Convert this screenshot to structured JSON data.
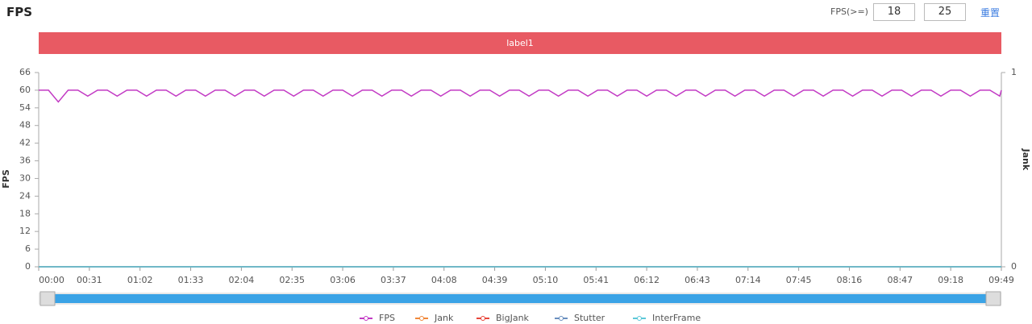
{
  "header": {
    "title": "FPS",
    "threshold_label": "FPS(>=)",
    "threshold_low": 18,
    "threshold_high": 25,
    "reset": "重置"
  },
  "chart_data": {
    "type": "line",
    "band_label": "label1",
    "y_label": "FPS",
    "y2_label": "Jank",
    "xlim": [
      0,
      589
    ],
    "xticks": [
      {
        "value": 0,
        "label": "00:00"
      },
      {
        "value": 31,
        "label": "00:31"
      },
      {
        "value": 62,
        "label": "01:02"
      },
      {
        "value": 93,
        "label": "01:33"
      },
      {
        "value": 124,
        "label": "02:04"
      },
      {
        "value": 155,
        "label": "02:35"
      },
      {
        "value": 186,
        "label": "03:06"
      },
      {
        "value": 217,
        "label": "03:37"
      },
      {
        "value": 248,
        "label": "04:08"
      },
      {
        "value": 279,
        "label": "04:39"
      },
      {
        "value": 310,
        "label": "05:10"
      },
      {
        "value": 341,
        "label": "05:41"
      },
      {
        "value": 372,
        "label": "06:12"
      },
      {
        "value": 403,
        "label": "06:43"
      },
      {
        "value": 434,
        "label": "07:14"
      },
      {
        "value": 465,
        "label": "07:45"
      },
      {
        "value": 496,
        "label": "08:16"
      },
      {
        "value": 527,
        "label": "08:47"
      },
      {
        "value": 558,
        "label": "09:18"
      },
      {
        "value": 589,
        "label": "09:49"
      }
    ],
    "ylim": [
      0,
      66
    ],
    "yticks": [
      0,
      6,
      12,
      18,
      24,
      30,
      36,
      42,
      48,
      54,
      60,
      66
    ],
    "y2lim": [
      0,
      1
    ],
    "y2ticks": [
      0,
      1
    ],
    "series": [
      {
        "name": "FPS",
        "color": "#c23ac4",
        "x": [
          0,
          6,
          12,
          18,
          24,
          30,
          36,
          42,
          48,
          54,
          60,
          66,
          72,
          78,
          84,
          90,
          96,
          102,
          108,
          114,
          120,
          126,
          132,
          138,
          144,
          150,
          156,
          162,
          168,
          174,
          180,
          186,
          192,
          198,
          204,
          210,
          216,
          222,
          228,
          234,
          240,
          246,
          252,
          258,
          264,
          270,
          276,
          282,
          288,
          294,
          300,
          306,
          312,
          318,
          324,
          330,
          336,
          342,
          348,
          354,
          360,
          366,
          372,
          378,
          384,
          390,
          396,
          402,
          408,
          414,
          420,
          426,
          432,
          438,
          444,
          450,
          456,
          462,
          468,
          474,
          480,
          486,
          492,
          498,
          504,
          510,
          516,
          522,
          528,
          534,
          540,
          546,
          552,
          558,
          564,
          570,
          576,
          582,
          588,
          589
        ],
        "values": [
          60,
          60,
          56,
          60,
          60,
          58,
          60,
          60,
          58,
          60,
          60,
          58,
          60,
          60,
          58,
          60,
          60,
          58,
          60,
          60,
          58,
          60,
          60,
          58,
          60,
          60,
          58,
          60,
          60,
          58,
          60,
          60,
          58,
          60,
          60,
          58,
          60,
          60,
          58,
          60,
          60,
          58,
          60,
          60,
          58,
          60,
          60,
          58,
          60,
          60,
          58,
          60,
          60,
          58,
          60,
          60,
          58,
          60,
          60,
          58,
          60,
          60,
          58,
          60,
          60,
          58,
          60,
          60,
          58,
          60,
          60,
          58,
          60,
          60,
          58,
          60,
          60,
          58,
          60,
          60,
          58,
          60,
          60,
          58,
          60,
          60,
          58,
          60,
          60,
          58,
          60,
          60,
          58,
          60,
          60,
          58,
          60,
          60,
          58,
          60
        ]
      },
      {
        "name": "Jank",
        "color": "#f0883a",
        "axis": "y2",
        "x": [
          0,
          589
        ],
        "values": [
          0,
          0
        ]
      },
      {
        "name": "BigJank",
        "color": "#e8463a",
        "axis": "y2",
        "x": [
          0,
          589
        ],
        "values": [
          0,
          0
        ]
      },
      {
        "name": "Stutter",
        "color": "#6a8fbf",
        "axis": "y2",
        "x": [
          0,
          589
        ],
        "values": [
          0,
          0
        ]
      },
      {
        "name": "InterFrame",
        "color": "#5cc8d8",
        "axis": "y2",
        "x": [
          0,
          589
        ],
        "values": [
          0,
          0
        ]
      }
    ]
  }
}
